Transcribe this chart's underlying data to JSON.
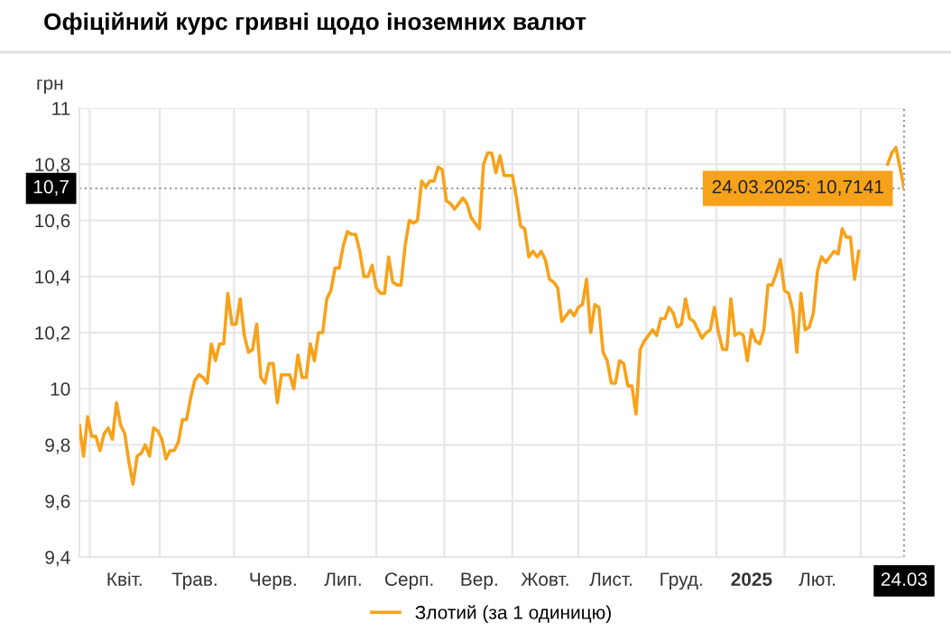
{
  "chart_data": {
    "type": "line",
    "title": "Офіційний курс гривні щодо іноземних валют",
    "ylabel": "грн",
    "categories": [
      null,
      null,
      null,
      null,
      null,
      null,
      null,
      null,
      null,
      null,
      null,
      "Квіт.",
      null,
      null,
      null,
      null,
      null,
      null,
      null,
      null,
      null,
      null,
      null,
      null,
      null,
      null,
      null,
      null,
      "Трав.",
      null,
      null,
      null,
      null,
      null,
      null,
      null,
      null,
      null,
      null,
      null,
      null,
      null,
      null,
      null,
      null,
      null,
      null,
      "Черв.",
      null,
      null,
      null,
      null,
      null,
      null,
      null,
      null,
      null,
      null,
      null,
      null,
      null,
      null,
      null,
      null,
      "Лип.",
      null,
      null,
      null,
      null,
      null,
      null,
      null,
      null,
      null,
      null,
      null,
      null,
      null,
      null,
      null,
      "Серп.",
      null,
      null,
      null,
      null,
      null,
      null,
      null,
      null,
      null,
      null,
      null,
      null,
      null,
      null,
      null,
      null,
      "Вер.",
      null,
      null,
      null,
      null,
      null,
      null,
      null,
      null,
      null,
      null,
      null,
      null,
      null,
      null,
      null,
      "Жовт.",
      null,
      null,
      null,
      null,
      null,
      null,
      null,
      null,
      null,
      null,
      null,
      null,
      null,
      null,
      null,
      "Лист.",
      null,
      null,
      null,
      null,
      null,
      null,
      null,
      null,
      null,
      null,
      null,
      null,
      null,
      null,
      null,
      null,
      "Груд.",
      null,
      null,
      null,
      null,
      null,
      null,
      null,
      null,
      null,
      null,
      null,
      null,
      null,
      null,
      null,
      null,
      "2025",
      null,
      null,
      null,
      null,
      null,
      null,
      null,
      null,
      null,
      null,
      null,
      null,
      null,
      null,
      null,
      "Лют.",
      null,
      null,
      null,
      null,
      null,
      null,
      null,
      null,
      null,
      null,
      null,
      null,
      null,
      null,
      null,
      null,
      null,
      null,
      null,
      null,
      "24.03"
    ],
    "series": [
      {
        "name": "Злотий (за 1 одиницю)",
        "color": "#f7a21b",
        "values": [
          9.87,
          9.76,
          9.9,
          9.83,
          9.83,
          9.78,
          9.84,
          9.86,
          9.82,
          9.95,
          9.87,
          9.84,
          9.74,
          9.66,
          9.76,
          9.77,
          9.8,
          9.76,
          9.86,
          9.85,
          9.82,
          9.75,
          9.78,
          9.78,
          9.81,
          9.89,
          9.89,
          9.97,
          10.03,
          10.05,
          10.04,
          10.02,
          10.16,
          10.1,
          10.16,
          10.16,
          10.34,
          10.23,
          10.23,
          10.32,
          10.19,
          10.13,
          10.14,
          10.23,
          10.04,
          10.02,
          10.09,
          10.09,
          9.95,
          10.05,
          10.05,
          10.05,
          10.0,
          10.12,
          10.04,
          10.04,
          10.16,
          10.1,
          10.2,
          10.2,
          10.32,
          10.35,
          10.43,
          10.43,
          10.51,
          10.56,
          10.55,
          10.55,
          10.49,
          10.4,
          10.4,
          10.44,
          10.36,
          10.34,
          10.34,
          10.47,
          10.38,
          10.37,
          10.37,
          10.51,
          10.6,
          10.59,
          10.6,
          10.74,
          10.72,
          10.74,
          10.74,
          10.79,
          10.78,
          10.67,
          10.66,
          10.64,
          10.66,
          10.68,
          10.66,
          10.61,
          10.59,
          10.57,
          10.8,
          10.84,
          10.84,
          10.77,
          10.83,
          10.76,
          10.76,
          10.76,
          10.68,
          10.58,
          10.57,
          10.47,
          10.49,
          10.47,
          10.49,
          10.46,
          10.39,
          10.38,
          10.36,
          10.24,
          10.26,
          10.28,
          10.26,
          10.29,
          10.3,
          10.39,
          10.2,
          10.3,
          10.29,
          10.13,
          10.1,
          10.02,
          10.02,
          10.1,
          10.09,
          10.01,
          10.01,
          9.91,
          10.14,
          10.17,
          10.19,
          10.21,
          10.19,
          10.25,
          10.25,
          10.29,
          10.27,
          10.22,
          10.23,
          10.32,
          10.25,
          10.24,
          10.21,
          10.18,
          10.2,
          10.21,
          10.29,
          10.2,
          10.14,
          10.14,
          10.32,
          10.19,
          10.2,
          10.19,
          10.1,
          10.21,
          10.17,
          10.16,
          10.21,
          10.37,
          10.37,
          10.41,
          10.46,
          10.35,
          10.34,
          10.28,
          10.13,
          10.34,
          10.21,
          10.22,
          10.27,
          10.42,
          10.47,
          10.45,
          10.47,
          10.49,
          10.48,
          10.57,
          10.54,
          10.54,
          10.39,
          10.49,
          null,
          null,
          null,
          null,
          null,
          null,
          10.8,
          10.84,
          10.86,
          10.79,
          10.7141
        ]
      }
    ],
    "ylim": [
      9.4,
      11
    ],
    "yticks": [
      {
        "value": 9.4,
        "label": "9,4"
      },
      {
        "value": 9.6,
        "label": "9,6"
      },
      {
        "value": 9.8,
        "label": "9,8"
      },
      10,
      {
        "value": 10.2,
        "label": "10,2"
      },
      {
        "value": 10.4,
        "label": "10,4"
      },
      {
        "value": 10.6,
        "label": "10,6"
      },
      {
        "value": 10.8,
        "label": "10,8"
      },
      11
    ],
    "grid": true,
    "legend": "bottom",
    "marker": "none",
    "line_style": "solid",
    "ref_lines": [
      {
        "axis": "y",
        "value": 10.7141,
        "label": "10,7",
        "line_style": "dotted"
      },
      {
        "axis": "x",
        "value": "24.03",
        "line_style": "dotted"
      }
    ],
    "annotations": [
      {
        "text": "24.03.2025: 10,7141",
        "x": "24.03",
        "y": 10.7141
      }
    ]
  }
}
